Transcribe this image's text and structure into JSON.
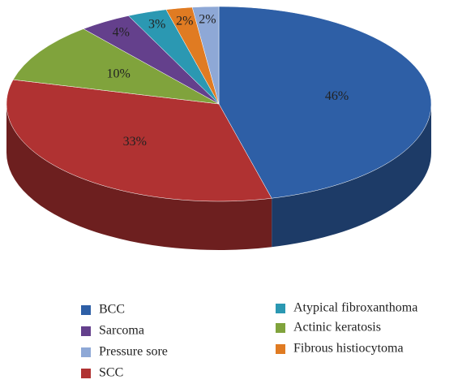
{
  "chart_data": {
    "type": "pie",
    "categories": [
      "BCC",
      "SCC",
      "Actinic keratosis",
      "Sarcoma",
      "Atypical fibroxanthoma",
      "Fibrous histiocytoma",
      "Pressure sore"
    ],
    "values": [
      46,
      33,
      10,
      4,
      3,
      2,
      2
    ],
    "value_labels": [
      "46%",
      "33%",
      "10%",
      "4%",
      "3%",
      "2%",
      "2%"
    ],
    "colors": [
      "#2e5fa6",
      "#b03232",
      "#80a33c",
      "#64408c",
      "#2b98b2",
      "#e07b22",
      "#8ea8d6"
    ],
    "legend": "bottom"
  }
}
